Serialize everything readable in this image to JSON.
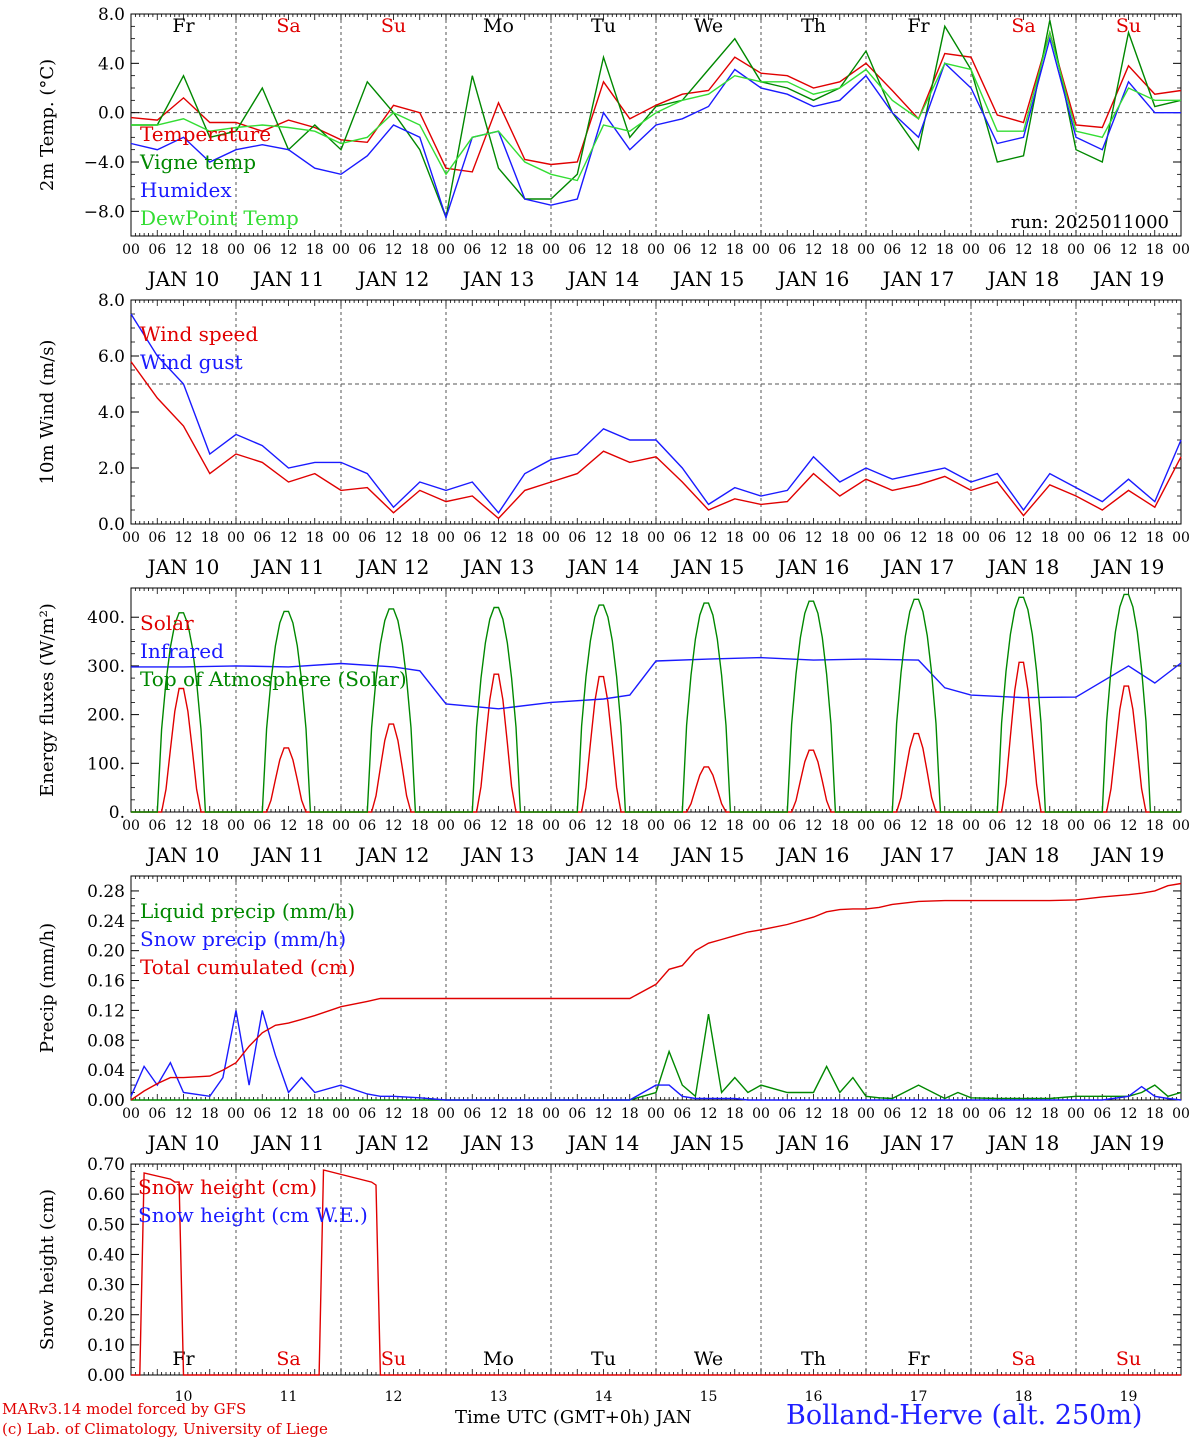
{
  "days": {
    "dates": [
      "JAN 10",
      "JAN 11",
      "JAN 12",
      "JAN 13",
      "JAN 14",
      "JAN 15",
      "JAN 16",
      "JAN 17",
      "JAN 18",
      "JAN 19"
    ],
    "numbers": [
      "10",
      "11",
      "12",
      "13",
      "14",
      "15",
      "16",
      "17",
      "18",
      "19"
    ],
    "weekdays": [
      "Fr",
      "Sa",
      "Su",
      "Mo",
      "Tu",
      "We",
      "Th",
      "Fr",
      "Sa",
      "Su"
    ],
    "weekend": [
      false,
      true,
      true,
      false,
      false,
      false,
      false,
      false,
      true,
      true
    ],
    "hour_ticks": [
      "00",
      "06",
      "12",
      "18"
    ],
    "end_tick": "00"
  },
  "colors": {
    "red": "#e00000",
    "green": "#008800",
    "blue": "#1a1aff",
    "lightgreen": "#33dd33",
    "weekend": "#e00000",
    "weekday": "#000000"
  },
  "footer": {
    "credit_line1": "MARv3.14 model forced by GFS",
    "credit_line2": "(c) Lab. of Climatology, University of Liege",
    "xlabel": "Time UTC (GMT+0h) JAN",
    "station": "Bolland-Herve (alt. 250m)"
  },
  "chart_data": [
    {
      "type": "line",
      "ylabel": "2m Temp. (°C)",
      "ylim": [
        -10,
        8
      ],
      "yticks": [
        -8,
        -4,
        0,
        4,
        8
      ],
      "ytick_labels": [
        "-8.0",
        "-4.0",
        "0.0",
        "4.0",
        "8.0"
      ],
      "ref_line": 0,
      "annotation": "run: 2025011000",
      "x_hours": [
        0,
        6,
        12,
        18,
        24,
        30,
        36,
        42,
        48,
        54,
        60,
        66,
        72,
        78,
        84,
        90,
        96,
        102,
        108,
        114,
        120,
        126,
        132,
        138,
        144,
        150,
        156,
        162,
        168,
        174,
        180,
        186,
        192,
        198,
        204,
        210,
        216,
        222,
        228,
        234,
        240
      ],
      "series": [
        {
          "name": "Temperature",
          "color": "#e00000",
          "values": [
            -0.4,
            -0.6,
            1.2,
            -0.8,
            -0.8,
            -1.5,
            -0.6,
            -1.2,
            -2.2,
            -2.4,
            0.6,
            0.0,
            -4.5,
            -4.8,
            0.8,
            -3.8,
            -4.2,
            -4.0,
            2.5,
            -0.5,
            0.6,
            1.5,
            1.8,
            4.5,
            3.2,
            3.0,
            2.0,
            2.5,
            4.0,
            1.8,
            -0.5,
            4.8,
            4.5,
            -0.2,
            -0.8,
            6.5,
            -1.0,
            -1.2,
            3.8,
            1.5,
            1.8
          ]
        },
        {
          "name": "Vigne temp",
          "color": "#008800",
          "values": [
            -1.0,
            -1.0,
            3.0,
            -2.0,
            -1.5,
            2.0,
            -3.0,
            -1.0,
            -3.0,
            2.5,
            0.0,
            -3.0,
            -8.5,
            3.0,
            -4.5,
            -7.0,
            -7.0,
            -5.0,
            4.5,
            -2.0,
            0.5,
            1.0,
            3.5,
            6.0,
            2.5,
            2.0,
            1.0,
            2.0,
            5.0,
            0.0,
            -3.0,
            7.0,
            3.5,
            -4.0,
            -3.5,
            7.5,
            -3.0,
            -4.0,
            6.5,
            0.5,
            1.0
          ]
        },
        {
          "name": "Humidex",
          "color": "#1a1aff",
          "values": [
            -2.5,
            -3.0,
            -2.0,
            -4.0,
            -3.0,
            -2.6,
            -3.0,
            -4.5,
            -5.0,
            -3.5,
            -1.0,
            -2.0,
            -8.5,
            -2.0,
            -1.5,
            -7.0,
            -7.5,
            -7.0,
            0.0,
            -3.0,
            -1.0,
            -0.5,
            0.5,
            3.5,
            2.0,
            1.5,
            0.5,
            1.0,
            3.0,
            0.0,
            -2.0,
            4.0,
            2.0,
            -2.5,
            -2.0,
            6.0,
            -2.0,
            -3.0,
            2.5,
            0.0,
            0.0
          ]
        },
        {
          "name": "DewPoint Temp",
          "color": "#33dd33",
          "values": [
            -1.0,
            -1.0,
            -0.5,
            -1.5,
            -1.2,
            -1.0,
            -1.2,
            -1.5,
            -2.5,
            -2.0,
            0.0,
            -1.0,
            -5.0,
            -2.0,
            -1.5,
            -4.0,
            -5.0,
            -5.5,
            -1.0,
            -1.5,
            0.0,
            1.0,
            1.5,
            3.0,
            2.5,
            2.5,
            1.5,
            2.0,
            3.5,
            1.0,
            -0.5,
            4.0,
            3.5,
            -1.5,
            -1.5,
            6.5,
            -1.5,
            -2.0,
            2.0,
            1.0,
            1.0
          ]
        }
      ]
    },
    {
      "type": "line",
      "ylabel": "10m Wind (m/s)",
      "ylim": [
        0,
        8
      ],
      "yticks": [
        0,
        2,
        4,
        6,
        8
      ],
      "ytick_labels": [
        "0.0",
        "2.0",
        "4.0",
        "6.0",
        "8.0"
      ],
      "ref_line": 5,
      "x_hours": [
        0,
        6,
        12,
        18,
        24,
        30,
        36,
        42,
        48,
        54,
        60,
        66,
        72,
        78,
        84,
        90,
        96,
        102,
        108,
        114,
        120,
        126,
        132,
        138,
        144,
        150,
        156,
        162,
        168,
        174,
        180,
        186,
        192,
        198,
        204,
        210,
        216,
        222,
        228,
        234,
        240
      ],
      "series": [
        {
          "name": "Wind speed",
          "color": "#e00000",
          "values": [
            5.8,
            4.5,
            3.5,
            1.8,
            2.5,
            2.2,
            1.5,
            1.8,
            1.2,
            1.3,
            0.4,
            1.2,
            0.8,
            1.0,
            0.2,
            1.2,
            1.5,
            1.8,
            2.6,
            2.2,
            2.4,
            1.5,
            0.5,
            0.9,
            0.7,
            0.8,
            1.8,
            1.0,
            1.6,
            1.2,
            1.4,
            1.7,
            1.2,
            1.5,
            0.3,
            1.4,
            1.0,
            0.5,
            1.2,
            0.6,
            2.4
          ]
        },
        {
          "name": "Wind gust",
          "color": "#1a1aff",
          "values": [
            7.5,
            6.0,
            5.0,
            2.5,
            3.2,
            2.8,
            2.0,
            2.2,
            2.2,
            1.8,
            0.6,
            1.5,
            1.2,
            1.5,
            0.4,
            1.8,
            2.3,
            2.5,
            3.4,
            3.0,
            3.0,
            2.0,
            0.7,
            1.3,
            1.0,
            1.2,
            2.4,
            1.5,
            2.0,
            1.6,
            1.8,
            2.0,
            1.5,
            1.8,
            0.5,
            1.8,
            1.3,
            0.8,
            1.6,
            0.8,
            3.0
          ]
        }
      ]
    },
    {
      "type": "line",
      "ylabel": "Energy fluxes (W/m²)",
      "ylim": [
        0,
        460
      ],
      "yticks": [
        0,
        100,
        200,
        300,
        400
      ],
      "ytick_labels": [
        "0.",
        "100.",
        "200.",
        "300.",
        "400."
      ],
      "daily_peaks": {
        "solar": [
          260,
          135,
          185,
          290,
          285,
          95,
          130,
          165,
          315,
          265
        ],
        "top_of_atmosphere": [
          412,
          415,
          420,
          423,
          428,
          432,
          436,
          440,
          444,
          450
        ]
      },
      "x_hours": [
        0,
        12,
        24,
        36,
        48,
        60,
        66,
        72,
        84,
        96,
        108,
        114,
        120,
        132,
        144,
        156,
        168,
        180,
        186,
        192,
        204,
        216,
        228,
        234,
        240
      ],
      "series": [
        {
          "name": "Solar",
          "color": "#e00000",
          "values": []
        },
        {
          "name": "Infrared",
          "color": "#1a1aff",
          "values": [
            298,
            298,
            300,
            298,
            305,
            298,
            290,
            222,
            212,
            225,
            232,
            240,
            310,
            314,
            317,
            312,
            314,
            312,
            255,
            240,
            235,
            236,
            300,
            265,
            306
          ]
        },
        {
          "name": "Top of Atmosphere (Solar)",
          "color": "#008800",
          "values": []
        }
      ]
    },
    {
      "type": "line",
      "ylabel": "Precip (mm/h)",
      "ylim": [
        0,
        0.3
      ],
      "yticks": [
        0,
        0.04,
        0.08,
        0.12,
        0.16,
        0.2,
        0.24,
        0.28
      ],
      "ytick_labels": [
        "0.00",
        "0.04",
        "0.08",
        "0.12",
        "0.16",
        "0.20",
        "0.24",
        "0.28"
      ],
      "x_hours": [
        0,
        3,
        6,
        9,
        12,
        18,
        21,
        24,
        27,
        30,
        33,
        36,
        39,
        42,
        48,
        54,
        57,
        60,
        66,
        72,
        84,
        96,
        108,
        114,
        120,
        123,
        126,
        129,
        132,
        135,
        138,
        141,
        144,
        150,
        156,
        159,
        162,
        165,
        168,
        171,
        174,
        180,
        186,
        189,
        192,
        198,
        204,
        210,
        216,
        222,
        228,
        231,
        234,
        237,
        240
      ],
      "series": [
        {
          "name": "Liquid precip (mm/h)",
          "color": "#008800",
          "values": [
            0,
            0,
            0,
            0,
            0,
            0,
            0,
            0,
            0,
            0,
            0,
            0,
            0,
            0,
            0,
            0,
            0,
            0,
            0,
            0,
            0,
            0,
            0,
            0,
            0.01,
            0.065,
            0.02,
            0.005,
            0.115,
            0.01,
            0.03,
            0.01,
            0.02,
            0.01,
            0.01,
            0.045,
            0.01,
            0.03,
            0.005,
            0.003,
            0.002,
            0.02,
            0.002,
            0.01,
            0.003,
            0.002,
            0.002,
            0.002,
            0.005,
            0.005,
            0.005,
            0.01,
            0.02,
            0.005,
            0.01
          ]
        },
        {
          "name": "Snow precip (mm/h)",
          "color": "#1a1aff",
          "values": [
            0.005,
            0.045,
            0.02,
            0.05,
            0.01,
            0.005,
            0.03,
            0.12,
            0.02,
            0.12,
            0.06,
            0.01,
            0.03,
            0.01,
            0.02,
            0.008,
            0.005,
            0.005,
            0.003,
            0,
            0,
            0,
            0,
            0,
            0.02,
            0.02,
            0.005,
            0.002,
            0.002,
            0.002,
            0.002,
            0,
            0,
            0,
            0,
            0,
            0,
            0,
            0,
            0,
            0,
            0,
            0,
            0,
            0,
            0,
            0,
            0,
            0,
            0,
            0.005,
            0.018,
            0.005,
            0.002,
            0
          ]
        },
        {
          "name": "Total cumulated (cm)",
          "color": "#e00000",
          "values": [
            0,
            0.012,
            0.022,
            0.03,
            0.03,
            0.032,
            0.04,
            0.05,
            0.072,
            0.09,
            0.1,
            0.103,
            0.108,
            0.113,
            0.125,
            0.132,
            0.136,
            0.136,
            0.136,
            0.136,
            0.136,
            0.136,
            0.136,
            0.136,
            0.155,
            0.175,
            0.18,
            0.2,
            0.21,
            0.215,
            0.22,
            0.225,
            0.228,
            0.235,
            0.245,
            0.252,
            0.255,
            0.256,
            0.256,
            0.258,
            0.262,
            0.266,
            0.267,
            0.267,
            0.267,
            0.267,
            0.267,
            0.267,
            0.268,
            0.272,
            0.275,
            0.277,
            0.28,
            0.287,
            0.29
          ]
        }
      ]
    },
    {
      "type": "line",
      "ylabel": "Snow height (cm)",
      "ylim": [
        0,
        0.7
      ],
      "yticks": [
        0,
        0.1,
        0.2,
        0.3,
        0.4,
        0.5,
        0.6,
        0.7
      ],
      "ytick_labels": [
        "0.00",
        "0.10",
        "0.20",
        "0.30",
        "0.40",
        "0.50",
        "0.60",
        "0.70"
      ],
      "x_hours": [
        0,
        2,
        3,
        9,
        10,
        11,
        12,
        22,
        23,
        24,
        42,
        43,
        44,
        55,
        56,
        57,
        240
      ],
      "series": [
        {
          "name": "Snow height (cm)",
          "color": "#e00000",
          "values": [
            0,
            0,
            0.67,
            0.65,
            0.64,
            0.64,
            0,
            0,
            0,
            0,
            0,
            0,
            0.68,
            0.64,
            0.63,
            0,
            0
          ]
        },
        {
          "name": "Snow height (cm W.E.)",
          "color": "#1a1aff",
          "values": []
        }
      ]
    }
  ]
}
